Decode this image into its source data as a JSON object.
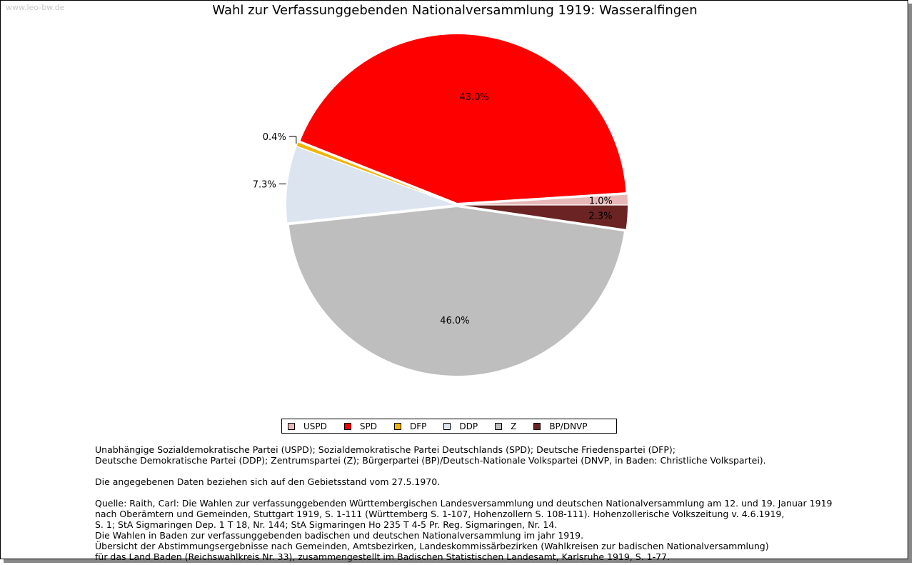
{
  "watermark": "www.leo-bw.de",
  "chart_data": {
    "type": "pie",
    "title": "Wahl zur Verfassunggebenden Nationalversammlung 1919: Wasseralfingen",
    "slices": [
      {
        "label": "USPD",
        "value": 1.0,
        "text": "1.0%",
        "color": "#e8b8b8"
      },
      {
        "label": "SPD",
        "value": 43.0,
        "text": "43.0%",
        "color": "#ff0000"
      },
      {
        "label": "DFP",
        "value": 0.4,
        "text": "0.4%",
        "color": "#f2b400"
      },
      {
        "label": "DDP",
        "value": 7.3,
        "text": "7.3%",
        "color": "#dce4f0"
      },
      {
        "label": "Z",
        "value": 46.0,
        "text": "46.0%",
        "color": "#bebebe"
      },
      {
        "label": "BP/DNVP",
        "value": 2.3,
        "text": "2.3%",
        "color": "#6b2323"
      }
    ],
    "legend_placement": "bottom"
  },
  "notes": {
    "parties_line1": "Unabhängige Sozialdemokratische Partei (USPD); Sozialdemokratische Partei Deutschlands (SPD); Deutsche Friedenspartei (DFP);",
    "parties_line2": "Deutsche Demokratische Partei (DDP); Zentrumspartei (Z); Bürgerpartei (BP)/Deutsch-Nationale Volkspartei (DNVP, in Baden: Christliche Volkspartei).",
    "territory": "Die angegebenen Daten beziehen sich auf den Gebietsstand vom 27.5.1970.",
    "source_line1": "Quelle: Raith, Carl: Die Wahlen zur verfassunggebenden Württembergischen Landesversammlung und deutschen Nationalversammlung am 12. und 19. Januar 1919",
    "source_line2": "nach Oberämtern und Gemeinden, Stuttgart 1919, S. 1-111 (Württemberg S. 1-107, Hohenzollern S. 108-111). Hohenzollerische Volkszeitung v. 4.6.1919,",
    "source_line3": "S. 1; StA Sigmaringen Dep. 1 T 18, Nr. 144; StA Sigmaringen Ho 235 T 4-5 Pr. Reg. Sigmaringen, Nr. 14.",
    "source_line4": "Die Wahlen in Baden zur verfassunggebenden badischen und deutschen Nationalversammlung im jahr 1919.",
    "source_line5": "Übersicht der Abstimmungsergebnisse nach Gemeinden, Amtsbezirken, Landeskommissärbezirken (Wahlkreisen zur badischen Nationalversammlung)",
    "source_line6": "für das Land Baden (Reichswahlkreis Nr. 33), zusammengestellt im Badischen Statistischen Landesamt, Karlsruhe 1919, S. 1-77."
  }
}
